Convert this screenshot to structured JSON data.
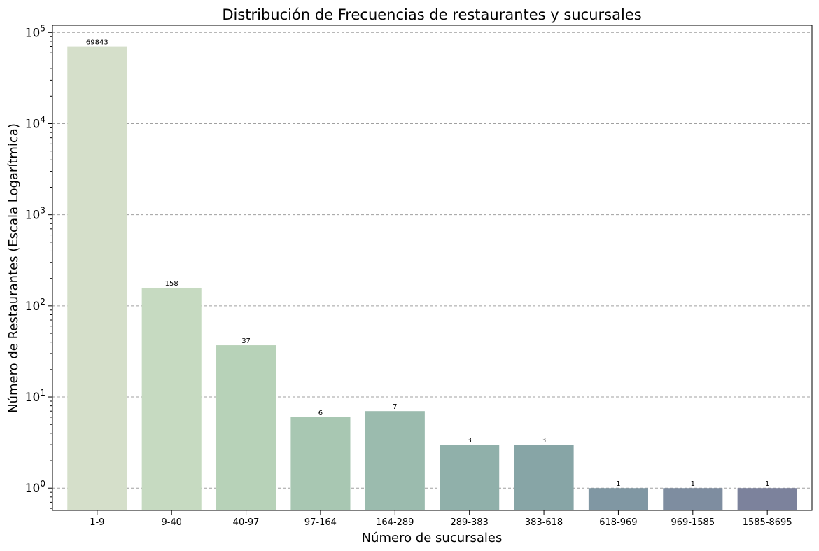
{
  "chart_data": {
    "type": "bar",
    "title": "Distribución de Frecuencias de restaurantes y sucursales",
    "xlabel": "Número de sucursales",
    "ylabel": "Número de Restaurantes (Escala Logarítmica)",
    "y_scale": "log",
    "ylim": [
      0.57,
      120000
    ],
    "yticks": [
      {
        "value": 1,
        "base": "10",
        "exp": "0"
      },
      {
        "value": 10,
        "base": "10",
        "exp": "1"
      },
      {
        "value": 100,
        "base": "10",
        "exp": "2"
      },
      {
        "value": 1000,
        "base": "10",
        "exp": "3"
      },
      {
        "value": 10000,
        "base": "10",
        "exp": "4"
      },
      {
        "value": 100000,
        "base": "10",
        "exp": "5"
      }
    ],
    "grid": "y-major-dashed",
    "categories": [
      "1-9",
      "9-40",
      "40-97",
      "97-164",
      "164-289",
      "289-383",
      "383-618",
      "618-969",
      "969-1585",
      "1585-8695"
    ],
    "values": [
      69843,
      158,
      37,
      6,
      7,
      3,
      3,
      1,
      1,
      1
    ],
    "data_labels": [
      "69843",
      "158",
      "37",
      "6",
      "7",
      "3",
      "3",
      "1",
      "1",
      "1"
    ],
    "colors": [
      "#d5dfca",
      "#c6dac1",
      "#b7d2b8",
      "#a8c7b2",
      "#9bbbae",
      "#90b0aa",
      "#87a5a6",
      "#8097a3",
      "#7e8da0",
      "#7c829c"
    ]
  }
}
